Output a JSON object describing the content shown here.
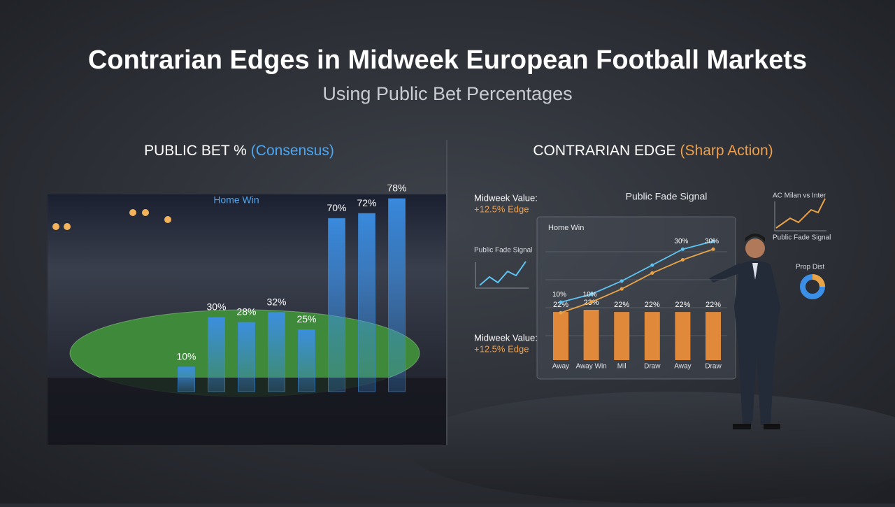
{
  "header": {
    "title": "Contrarian Edges in Midweek European Football Markets",
    "subtitle": "Using Public Bet Percentages"
  },
  "panels": [
    {
      "heading": "PUBLIC BET %",
      "heading_accent": "(Consensus)"
    },
    {
      "heading": "CONTRARIAN EDGE",
      "heading_accent": "(Sharp Action)"
    }
  ],
  "chart_data": [
    {
      "type": "bar",
      "annotation": "Home Win",
      "values": [
        10,
        30,
        28,
        32,
        25,
        70,
        72,
        78
      ],
      "value_labels": [
        "10%",
        "30%",
        "28%",
        "32%",
        "25%",
        "70%",
        "72%",
        "78%"
      ],
      "color": "#3a8de0"
    },
    {
      "type": "combo",
      "title": "Public Fade Signal",
      "subtitle": "Home Win",
      "categories": [
        "Away",
        "Away Win",
        "Mil",
        "Draw",
        "Away",
        "Draw"
      ],
      "values": [
        22,
        23,
        22,
        22,
        22,
        22
      ],
      "value_labels": [
        "22%",
        "23%",
        "22%",
        "22%",
        "22%",
        "22%"
      ],
      "color": "#e0893a",
      "series": [
        {
          "color": "#5cc3f2",
          "values": [
            10,
            13,
            18,
            24,
            30,
            33
          ],
          "value_labels": [
            "10%",
            null,
            null,
            null,
            "30%",
            null
          ]
        },
        {
          "color": "#e9a448",
          "values": [
            6,
            10,
            15,
            21,
            26,
            30
          ],
          "value_labels": [
            null,
            "10%",
            null,
            null,
            null,
            "30%"
          ]
        }
      ]
    }
  ],
  "callouts": [
    {
      "title": "Midweek Value:",
      "text": "+12.5% Edge"
    },
    {
      "title": "Midweek Value:",
      "text": "+12.5% Edge"
    }
  ],
  "widgets": {
    "sparkline": "Public Fade Signal",
    "match": "AC Milan vs Inter",
    "match_caption": "Public Fade Signal",
    "donut": "Prop Dist"
  }
}
